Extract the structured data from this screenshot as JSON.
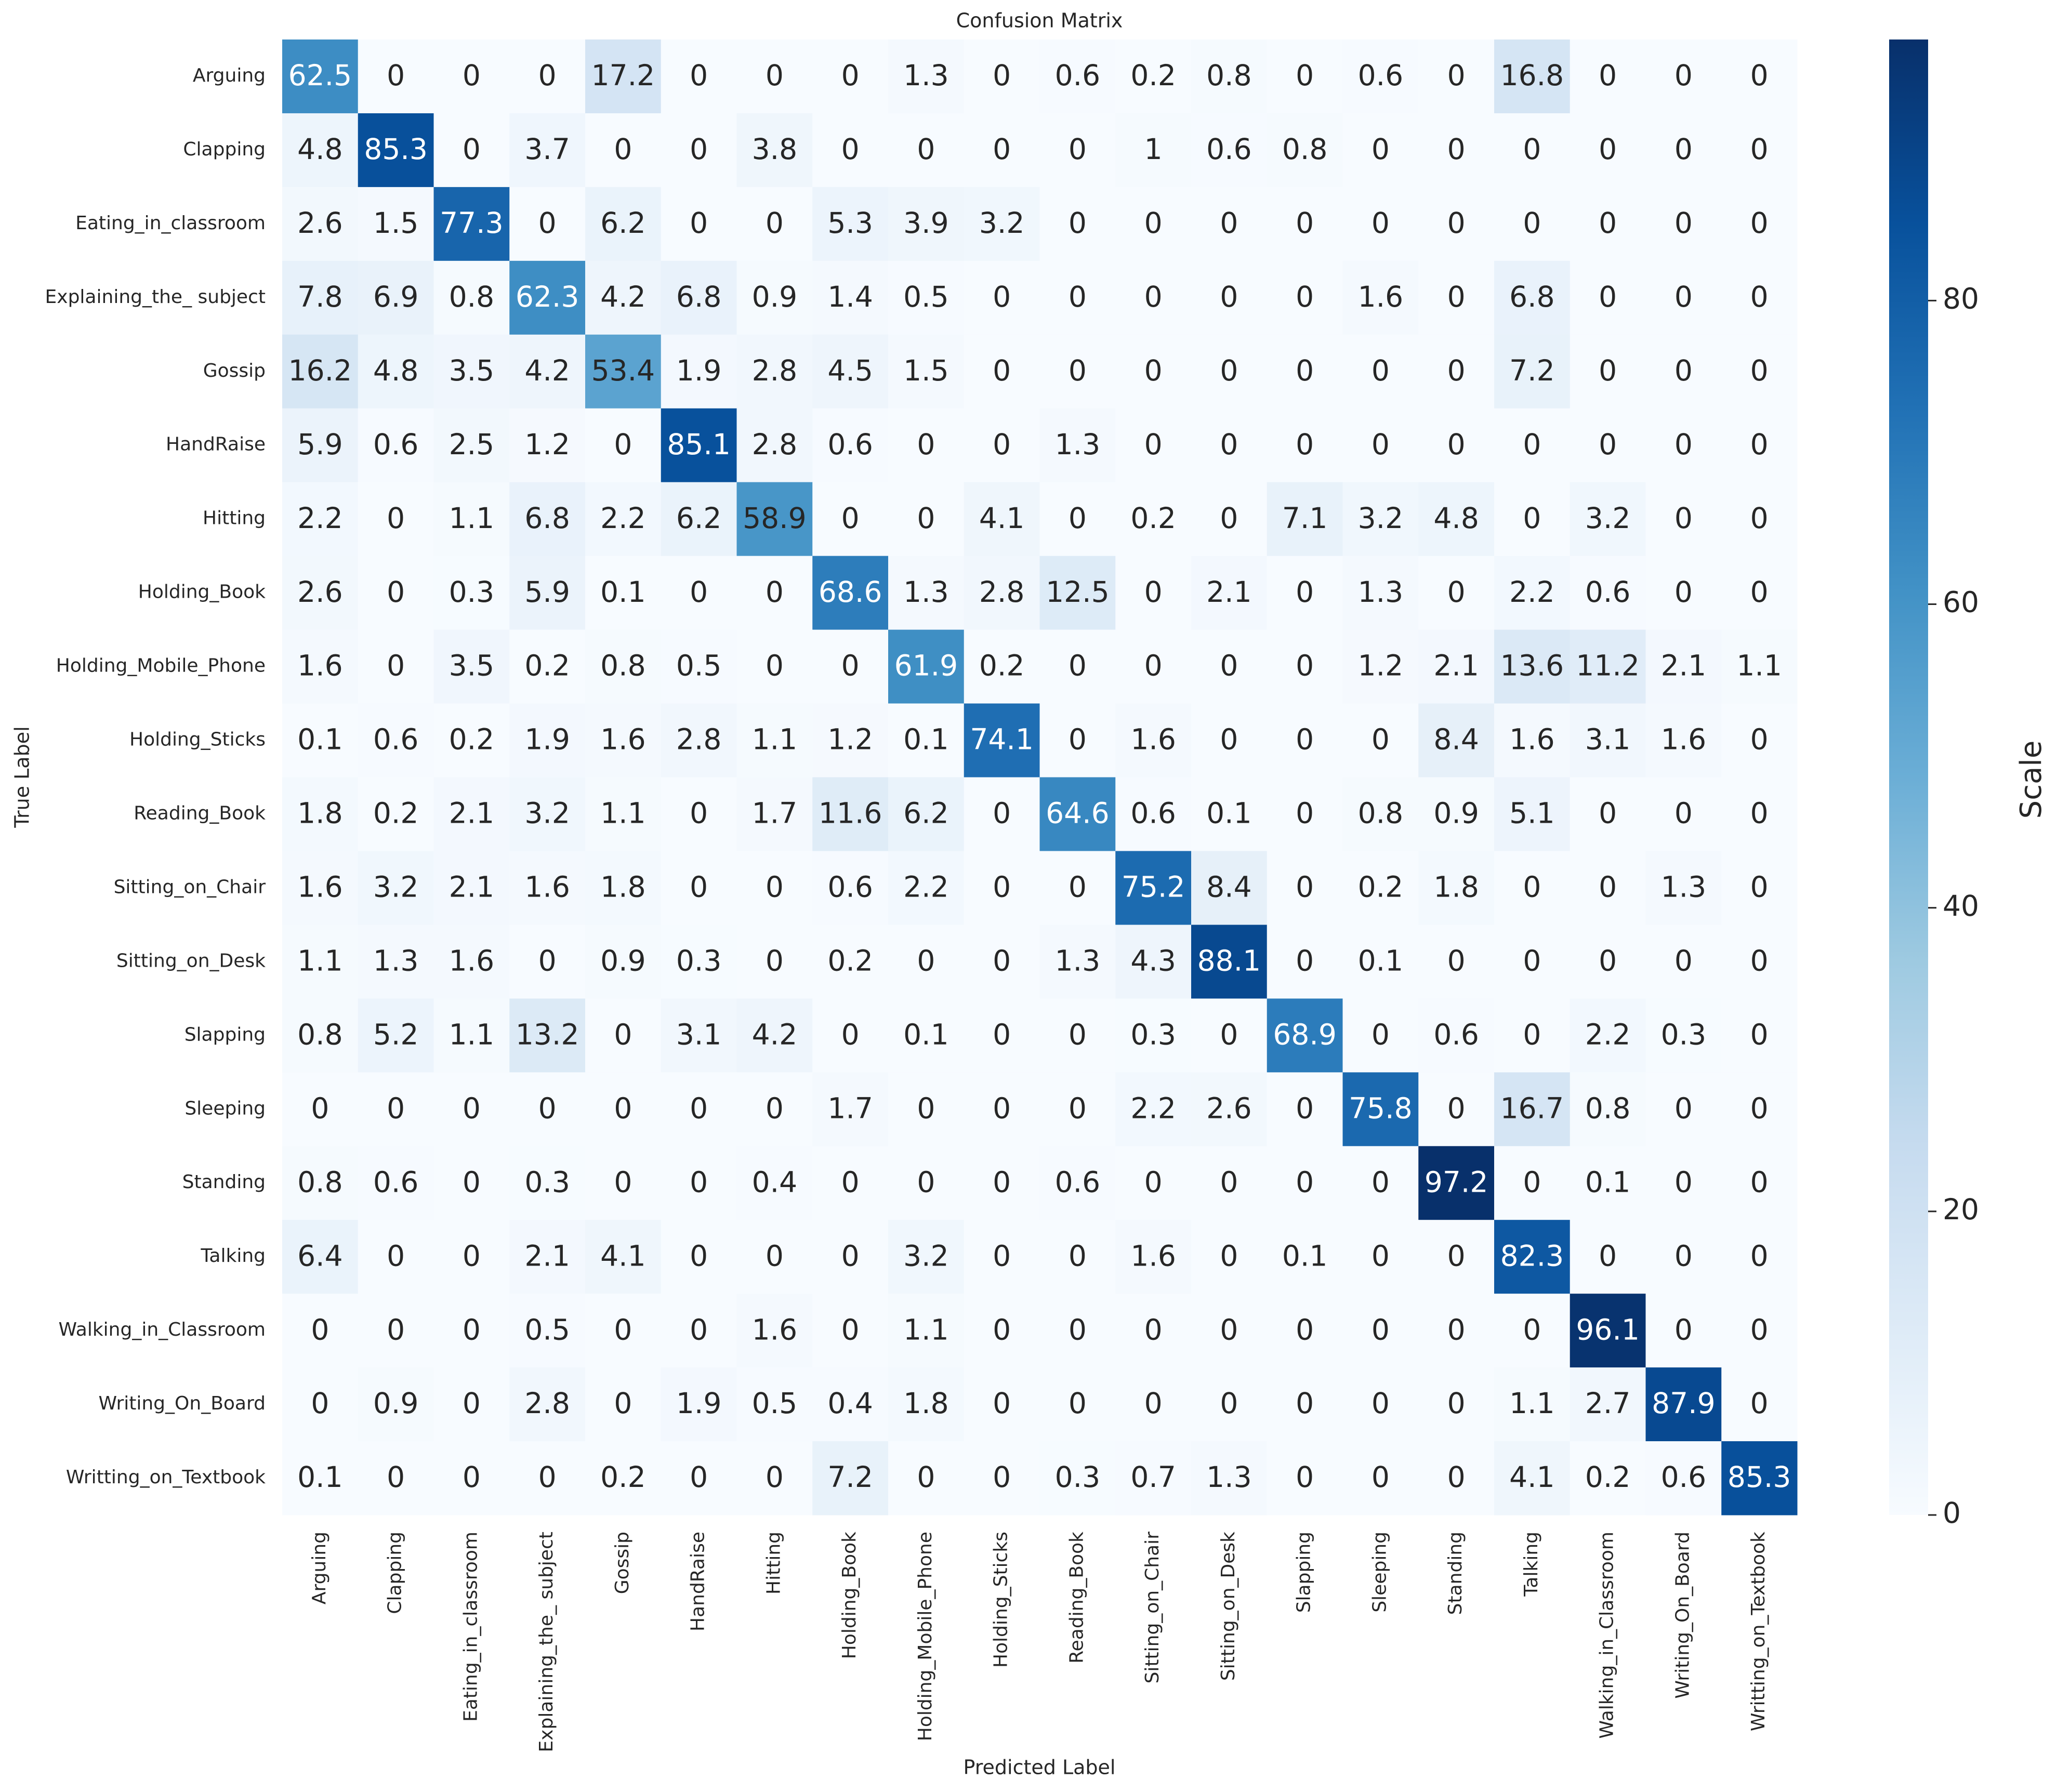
{
  "chart_data": {
    "type": "heatmap",
    "title": "Confusion Matrix",
    "xlabel": "Predicted Label",
    "ylabel": "True Label",
    "colorbar_label": "Scale",
    "colormap": "Blues",
    "clim": [
      0,
      97.2
    ],
    "cticks": [
      0,
      20,
      40,
      60,
      80
    ],
    "categories": [
      "Arguing",
      "Clapping",
      "Eating_in_classroom",
      "Explaining_the_ subject",
      "Gossip",
      "HandRaise",
      "Hitting",
      "Holding_Book",
      "Holding_Mobile_Phone",
      "Holding_Sticks",
      "Reading_Book",
      "Sitting_on_Chair",
      "Sitting_on_Desk",
      "Slapping",
      "Sleeping",
      "Standing",
      "Talking",
      "Walking_in_Classroom",
      "Writing_On_Board",
      "Writting_on_Textbook"
    ],
    "values": [
      [
        62.5,
        0,
        0,
        0,
        17.2,
        0,
        0,
        0,
        1.3,
        0,
        0.6,
        0.2,
        0.8,
        0,
        0.6,
        0,
        16.8,
        0,
        0,
        0
      ],
      [
        4.8,
        85.3,
        0,
        3.7,
        0,
        0,
        3.8,
        0,
        0,
        0,
        0,
        1,
        0.6,
        0.8,
        0,
        0,
        0,
        0,
        0,
        0
      ],
      [
        2.6,
        1.5,
        77.3,
        0,
        6.2,
        0,
        0,
        5.3,
        3.9,
        3.2,
        0,
        0,
        0,
        0,
        0,
        0,
        0,
        0,
        0,
        0
      ],
      [
        7.8,
        6.9,
        0.8,
        62.3,
        4.2,
        6.8,
        0.9,
        1.4,
        0.5,
        0,
        0,
        0,
        0,
        0,
        1.6,
        0,
        6.8,
        0,
        0,
        0
      ],
      [
        16.2,
        4.8,
        3.5,
        4.2,
        53.4,
        1.9,
        2.8,
        4.5,
        1.5,
        0,
        0,
        0,
        0,
        0,
        0,
        0,
        7.2,
        0,
        0,
        0
      ],
      [
        5.9,
        0.6,
        2.5,
        1.2,
        0,
        85.1,
        2.8,
        0.6,
        0,
        0,
        1.3,
        0,
        0,
        0,
        0,
        0,
        0,
        0,
        0,
        0
      ],
      [
        2.2,
        0,
        1.1,
        6.8,
        2.2,
        6.2,
        58.9,
        0,
        0,
        4.1,
        0,
        0.2,
        0,
        7.1,
        3.2,
        4.8,
        0,
        3.2,
        0,
        0
      ],
      [
        2.6,
        0,
        0.3,
        5.9,
        0.1,
        0,
        0,
        68.6,
        1.3,
        2.8,
        12.5,
        0,
        2.1,
        0,
        1.3,
        0,
        2.2,
        0.6,
        0,
        0
      ],
      [
        1.6,
        0,
        3.5,
        0.2,
        0.8,
        0.5,
        0,
        0,
        61.9,
        0.2,
        0,
        0,
        0,
        0,
        1.2,
        2.1,
        13.6,
        11.2,
        2.1,
        1.1
      ],
      [
        0.1,
        0.6,
        0.2,
        1.9,
        1.6,
        2.8,
        1.1,
        1.2,
        0.1,
        74.1,
        0,
        1.6,
        0,
        0,
        0,
        8.4,
        1.6,
        3.1,
        1.6,
        0
      ],
      [
        1.8,
        0.2,
        2.1,
        3.2,
        1.1,
        0,
        1.7,
        11.6,
        6.2,
        0,
        64.6,
        0.6,
        0.1,
        0,
        0.8,
        0.9,
        5.1,
        0,
        0,
        0
      ],
      [
        1.6,
        3.2,
        2.1,
        1.6,
        1.8,
        0,
        0,
        0.6,
        2.2,
        0,
        0,
        75.2,
        8.4,
        0,
        0.2,
        1.8,
        0,
        0,
        1.3,
        0
      ],
      [
        1.1,
        1.3,
        1.6,
        0,
        0.9,
        0.3,
        0,
        0.2,
        0,
        0,
        1.3,
        4.3,
        88.1,
        0,
        0.1,
        0,
        0,
        0,
        0,
        0
      ],
      [
        0.8,
        5.2,
        1.1,
        13.2,
        0,
        3.1,
        4.2,
        0,
        0.1,
        0,
        0,
        0.3,
        0,
        68.9,
        0,
        0.6,
        0,
        2.2,
        0.3,
        0
      ],
      [
        0,
        0,
        0,
        0,
        0,
        0,
        0,
        1.7,
        0,
        0,
        0,
        2.2,
        2.6,
        0,
        75.8,
        0,
        16.7,
        0.8,
        0,
        0
      ],
      [
        0.8,
        0.6,
        0,
        0.3,
        0,
        0,
        0.4,
        0,
        0,
        0,
        0.6,
        0,
        0,
        0,
        0,
        97.2,
        0,
        0.1,
        0,
        0
      ],
      [
        6.4,
        0,
        0,
        2.1,
        4.1,
        0,
        0,
        0,
        3.2,
        0,
        0,
        1.6,
        0,
        0.1,
        0,
        0,
        82.3,
        0,
        0,
        0
      ],
      [
        0,
        0,
        0,
        0.5,
        0,
        0,
        1.6,
        0,
        1.1,
        0,
        0,
        0,
        0,
        0,
        0,
        0,
        0,
        96.1,
        0,
        0
      ],
      [
        0,
        0.9,
        0,
        2.8,
        0,
        1.9,
        0.5,
        0.4,
        1.8,
        0,
        0,
        0,
        0,
        0,
        0,
        0,
        1.1,
        2.7,
        87.9,
        0
      ],
      [
        0.1,
        0,
        0,
        0,
        0.2,
        0,
        0,
        7.2,
        0,
        0,
        0.3,
        0.7,
        1.3,
        0,
        0,
        0,
        4.1,
        0.2,
        0.6,
        85.3
      ]
    ]
  }
}
